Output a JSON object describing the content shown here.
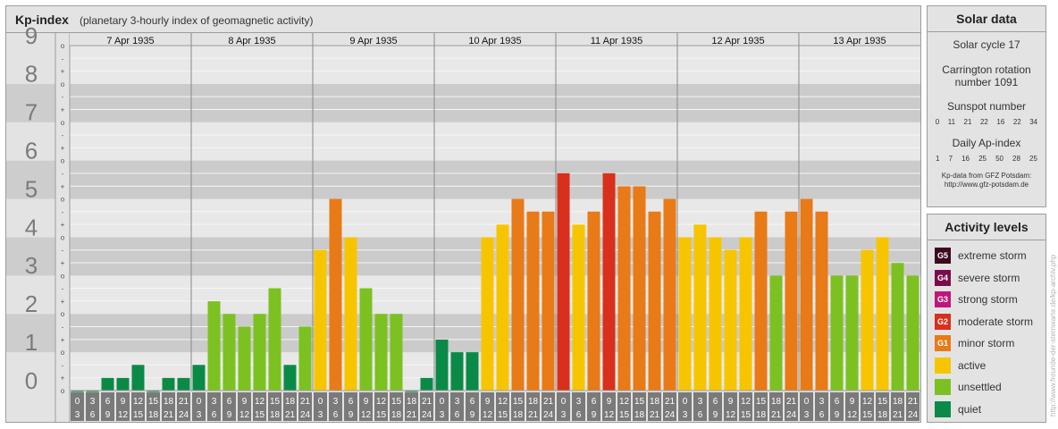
{
  "title": {
    "main": "Kp-index",
    "sub": "(planetary 3-hourly index of geomagnetic activity)"
  },
  "chart_data": {
    "type": "bar",
    "title": "Kp-index",
    "subtitle": "(planetary 3-hourly index of geomagnetic activity)",
    "ylim": [
      0,
      9
    ],
    "y_ticks": [
      "0",
      "1",
      "2",
      "3",
      "4",
      "5",
      "6",
      "7",
      "8",
      "9"
    ],
    "sub_ticks": [
      "o",
      "+",
      "-",
      "o",
      "+",
      "-",
      "o",
      "+",
      "-",
      "o",
      "+",
      "-",
      "o",
      "+",
      "-",
      "o",
      "+",
      "-",
      "o",
      "+",
      "-",
      "o",
      "+",
      "-",
      "o",
      "+",
      "-",
      "o"
    ],
    "hour_top": [
      "0",
      "3",
      "6",
      "9",
      "12",
      "15",
      "18",
      "21"
    ],
    "hour_bottom": [
      "3",
      "6",
      "9",
      "12",
      "15",
      "18",
      "21",
      "24"
    ],
    "days": [
      {
        "date": "7 Apr 1935",
        "kp": [
          0.0,
          0.0,
          0.33,
          0.33,
          0.67,
          0.0,
          0.33,
          0.33
        ]
      },
      {
        "date": "8 Apr 1935",
        "kp": [
          0.67,
          2.33,
          2.0,
          1.67,
          2.0,
          2.67,
          0.67,
          1.67
        ]
      },
      {
        "date": "9 Apr 1935",
        "kp": [
          3.67,
          5.0,
          4.0,
          2.67,
          2.0,
          2.0,
          0.0,
          0.33
        ]
      },
      {
        "date": "10 Apr 1935",
        "kp": [
          1.33,
          1.0,
          1.0,
          4.0,
          4.33,
          5.0,
          4.67,
          4.67
        ]
      },
      {
        "date": "11 Apr 1935",
        "kp": [
          5.67,
          4.33,
          4.67,
          5.67,
          5.33,
          5.33,
          4.67,
          5.0
        ]
      },
      {
        "date": "12 Apr 1935",
        "kp": [
          4.0,
          4.33,
          4.0,
          3.67,
          4.0,
          4.67,
          3.0,
          4.67
        ]
      },
      {
        "date": "13 Apr 1935",
        "kp": [
          5.0,
          4.67,
          3.0,
          3.0,
          3.67,
          4.0,
          3.33,
          3.0
        ]
      }
    ],
    "colors": {
      "quiet": "#0b8a47",
      "unsettled": "#7cc121",
      "active": "#f7c500",
      "minor": "#e87a17",
      "moderate": "#d9301d",
      "strong": "#c0167a",
      "severe": "#7a0c4d",
      "extreme": "#3d0820"
    }
  },
  "solar": {
    "header": "Solar data",
    "cycle": "Solar cycle 17",
    "carrington": "Carrington rotation number 1091",
    "sunspot_label": "Sunspot number",
    "sunspot_values": [
      "0",
      "11",
      "21",
      "22",
      "16",
      "22",
      "34"
    ],
    "ap_label": "Daily Ap-index",
    "ap_values": [
      "1",
      "7",
      "16",
      "25",
      "50",
      "28",
      "25"
    ],
    "source": "Kp-data from GFZ Potsdam:",
    "source_url": "http://www.gfz-potsdam.de"
  },
  "activity": {
    "header": "Activity levels",
    "levels": [
      {
        "code": "G5",
        "label": "extreme storm",
        "color": "#3d0820"
      },
      {
        "code": "G4",
        "label": "severe storm",
        "color": "#7a0c4d"
      },
      {
        "code": "G3",
        "label": "strong storm",
        "color": "#c0167a"
      },
      {
        "code": "G2",
        "label": "moderate storm",
        "color": "#d9301d"
      },
      {
        "code": "G1",
        "label": "minor storm",
        "color": "#e87a17"
      },
      {
        "code": "",
        "label": "active",
        "color": "#f7c500"
      },
      {
        "code": "",
        "label": "unsettled",
        "color": "#7cc121"
      },
      {
        "code": "",
        "label": "quiet",
        "color": "#0b8a47"
      }
    ]
  },
  "credit": "http://www.freunde-der-sternwarte.de/kp-archiv.php"
}
